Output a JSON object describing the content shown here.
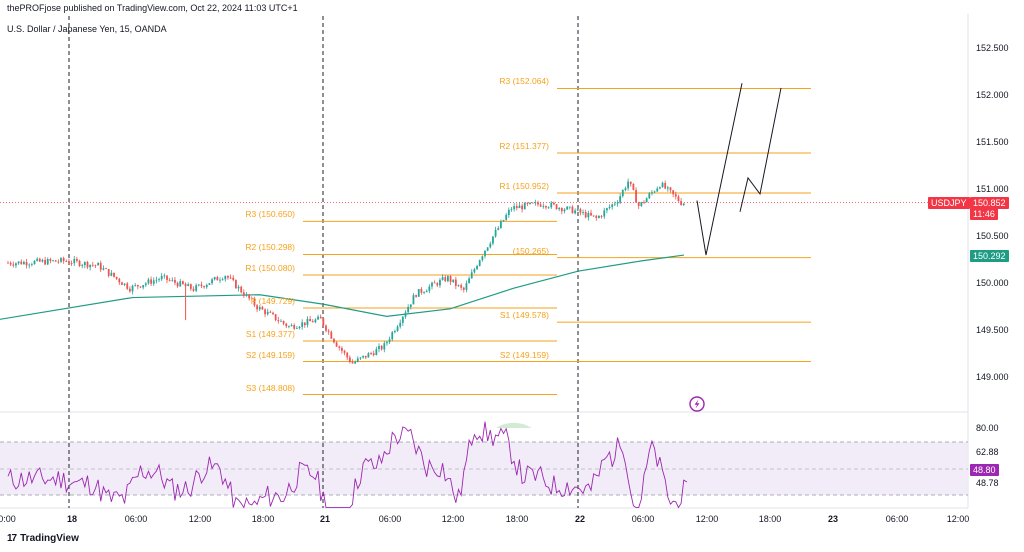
{
  "header": {
    "publisher": "thePROFjose published on TradingView.com, Oct 22, 2024 11:03 UTC+1",
    "symbol_title": "U.S. Dollar / Japanese Yen, 15, OANDA"
  },
  "footer": {
    "brand": "TradingView",
    "logo": "17"
  },
  "price_axis": [
    "152.500",
    "152.000",
    "151.500",
    "151.000",
    "150.500",
    "150.000",
    "149.500",
    "149.000"
  ],
  "rsi_axis": [
    "80.00",
    "62.88",
    "48.78"
  ],
  "time_axis": [
    "0:00",
    "18",
    "06:00",
    "12:00",
    "18:00",
    "21",
    "06:00",
    "12:00",
    "18:00",
    "22",
    "06:00",
    "12:00",
    "18:00",
    "23",
    "06:00",
    "12:00"
  ],
  "tags": {
    "symbol": "USDJPY",
    "last_price": "150.852",
    "countdown": "11:46",
    "ma_value": "150.292",
    "rsi_value": "48.80"
  },
  "colors": {
    "bull": "#26a69a",
    "bear": "#ef5350",
    "pivot": "#f7a21c",
    "ma": "#1f9c84",
    "rsi": "#9c27b0",
    "rsi_fill": "#ede7f6",
    "price_tag": "#f23645"
  },
  "pivot_levels": [
    {
      "label": "R3 (150.650)",
      "price": 150.65,
      "group": "oct21"
    },
    {
      "label": "R2 (150.298)",
      "price": 150.298,
      "group": "oct21"
    },
    {
      "label": "R1 (150.080)",
      "price": 150.08,
      "group": "oct21"
    },
    {
      "label": "P (149.729)",
      "price": 149.729,
      "group": "oct21"
    },
    {
      "label": "S1 (149.377)",
      "price": 149.377,
      "group": "oct21"
    },
    {
      "label": "S2 (149.159)",
      "price": 149.159,
      "group": "oct21"
    },
    {
      "label": "S3 (148.808)",
      "price": 148.808,
      "group": "oct21"
    },
    {
      "label": "R3 (152.064)",
      "price": 152.064,
      "group": "oct22"
    },
    {
      "label": "R2 (151.377)",
      "price": 151.377,
      "group": "oct22"
    },
    {
      "label": "R1 (150.952)",
      "price": 150.952,
      "group": "oct22"
    },
    {
      "label": "(150.265)",
      "price": 150.265,
      "group": "oct22"
    },
    {
      "label": "S1 (149.578)",
      "price": 149.578,
      "group": "oct22"
    },
    {
      "label": "S2 (149.159)",
      "price": 149.159,
      "group": "oct22"
    }
  ],
  "chart_data": {
    "type": "candlestick",
    "symbol": "USDJPY",
    "timeframe": "15",
    "ylim": [
      148.75,
      152.6
    ],
    "price_path": [
      {
        "t": "Oct 17 18:00",
        "p": 150.21
      },
      {
        "t": "Oct 18 00:00",
        "p": 150.23
      },
      {
        "t": "Oct 18 03:00",
        "p": 150.18
      },
      {
        "t": "Oct 18 06:00",
        "p": 149.94
      },
      {
        "t": "Oct 18 09:00",
        "p": 150.05
      },
      {
        "t": "Oct 18 12:00",
        "p": 149.93
      },
      {
        "t": "Oct 18 15:00",
        "p": 150.08
      },
      {
        "t": "Oct 18 18:00",
        "p": 149.74
      },
      {
        "t": "Oct 18 21:00",
        "p": 149.53
      },
      {
        "t": "Oct 21 00:00",
        "p": 149.61
      },
      {
        "t": "Oct 21 01:30",
        "p": 149.35
      },
      {
        "t": "Oct 21 03:00",
        "p": 149.14
      },
      {
        "t": "Oct 21 06:00",
        "p": 149.32
      },
      {
        "t": "Oct 21 09:00",
        "p": 149.88
      },
      {
        "t": "Oct 21 12:00",
        "p": 150.05
      },
      {
        "t": "Oct 21 13:30",
        "p": 149.91
      },
      {
        "t": "Oct 21 15:00",
        "p": 150.25
      },
      {
        "t": "Oct 21 16:30",
        "p": 150.53
      },
      {
        "t": "Oct 21 18:00",
        "p": 150.79
      },
      {
        "t": "Oct 21 21:00",
        "p": 150.84
      },
      {
        "t": "Oct 22 00:00",
        "p": 150.76
      },
      {
        "t": "Oct 22 02:00",
        "p": 150.68
      },
      {
        "t": "Oct 22 04:00",
        "p": 150.88
      },
      {
        "t": "Oct 22 05:00",
        "p": 151.08
      },
      {
        "t": "Oct 22 06:00",
        "p": 150.81
      },
      {
        "t": "Oct 22 08:00",
        "p": 151.05
      },
      {
        "t": "Oct 22 10:00",
        "p": 150.85
      }
    ],
    "last_price": 150.852,
    "moving_average": {
      "value": 150.292,
      "points": [
        {
          "t": "Oct 17 16:00",
          "v": 149.6
        },
        {
          "t": "Oct 18 06:00",
          "v": 149.84
        },
        {
          "t": "Oct 18 18:00",
          "v": 149.87
        },
        {
          "t": "Oct 21 00:00",
          "v": 149.77
        },
        {
          "t": "Oct 21 06:00",
          "v": 149.64
        },
        {
          "t": "Oct 21 12:00",
          "v": 149.72
        },
        {
          "t": "Oct 21 18:00",
          "v": 149.94
        },
        {
          "t": "Oct 22 00:00",
          "v": 150.12
        },
        {
          "t": "Oct 22 06:00",
          "v": 150.23
        },
        {
          "t": "Oct 22 10:00",
          "v": 150.292
        }
      ]
    },
    "rsi": {
      "value": 48.8,
      "levels": [
        62.88,
        48.78
      ],
      "ylim": [
        45,
        85
      ]
    },
    "projection": {
      "path_a": [
        150.872,
        150.292,
        152.12
      ],
      "path_b": [
        150.752,
        151.113,
        150.942,
        152.07
      ]
    },
    "session_dividers": [
      "Oct 18 00:00",
      "Oct 21 00:00",
      "Oct 22 00:00"
    ],
    "xlabels": [
      "0:00",
      "18",
      "06:00",
      "12:00",
      "18:00",
      "21",
      "06:00",
      "12:00",
      "18:00",
      "22",
      "06:00",
      "12:00",
      "18:00",
      "23",
      "06:00",
      "12:00"
    ]
  }
}
